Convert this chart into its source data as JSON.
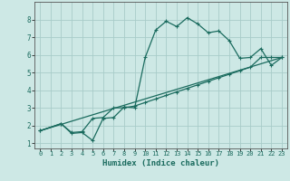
{
  "xlabel": "Humidex (Indice chaleur)",
  "background_color": "#cde8e5",
  "grid_color": "#a8ccc9",
  "line_color": "#1a6b5e",
  "xlim": [
    -0.5,
    23.5
  ],
  "ylim": [
    0.7,
    9.0
  ],
  "xticks": [
    0,
    1,
    2,
    3,
    4,
    5,
    6,
    7,
    8,
    9,
    10,
    11,
    12,
    13,
    14,
    15,
    16,
    17,
    18,
    19,
    20,
    21,
    22,
    23
  ],
  "yticks": [
    1,
    2,
    3,
    4,
    5,
    6,
    7,
    8
  ],
  "curve1_x": [
    0,
    2,
    3,
    4,
    5,
    6,
    7,
    8,
    9,
    10,
    11,
    12,
    13,
    14,
    15,
    16,
    17,
    18,
    19,
    20,
    21,
    22,
    23
  ],
  "curve1_y": [
    1.7,
    2.1,
    1.55,
    1.6,
    1.15,
    2.4,
    2.45,
    3.05,
    3.0,
    5.85,
    7.4,
    7.9,
    7.6,
    8.1,
    7.75,
    7.25,
    7.35,
    6.8,
    5.8,
    5.85,
    6.35,
    5.4,
    5.85
  ],
  "curve2_x": [
    0,
    2,
    3,
    4,
    5,
    6,
    7,
    8,
    9,
    10,
    11,
    12,
    13,
    14,
    15,
    16,
    17,
    18,
    19,
    20,
    21,
    22,
    23
  ],
  "curve2_y": [
    1.7,
    2.1,
    1.6,
    1.65,
    2.4,
    2.45,
    3.0,
    3.0,
    3.1,
    3.3,
    3.5,
    3.7,
    3.9,
    4.1,
    4.3,
    4.5,
    4.7,
    4.9,
    5.1,
    5.3,
    5.85,
    5.85,
    5.85
  ],
  "curve3_x": [
    0,
    23
  ],
  "curve3_y": [
    1.7,
    5.85
  ]
}
